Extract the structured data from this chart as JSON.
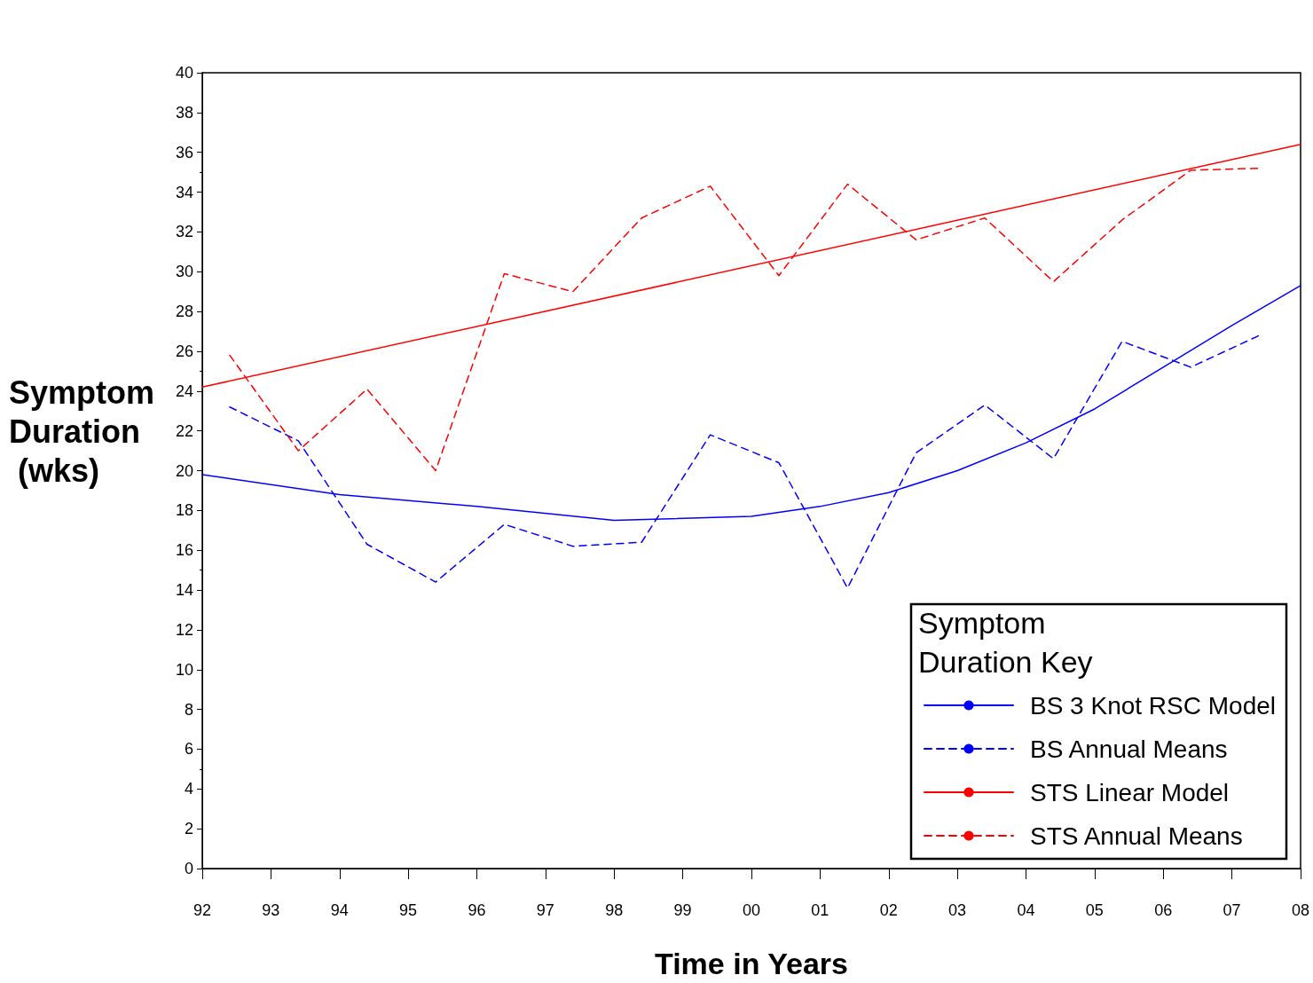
{
  "chart_data": {
    "type": "line",
    "xlabel": "Time in Years",
    "ylabel": "Symptom Duration (wks)",
    "legend_title": "Symptom Duration Key",
    "legend": "bottom right",
    "grid": false,
    "marker": "none",
    "xlim": [
      1992,
      2008
    ],
    "xticks": [
      {
        "value": 1992,
        "label": "92"
      },
      {
        "value": 1993,
        "label": "93"
      },
      {
        "value": 1994,
        "label": "94"
      },
      {
        "value": 1995,
        "label": "95"
      },
      {
        "value": 1996,
        "label": "96"
      },
      {
        "value": 1997,
        "label": "97"
      },
      {
        "value": 1998,
        "label": "98"
      },
      {
        "value": 1999,
        "label": "99"
      },
      {
        "value": 2000,
        "label": "00"
      },
      {
        "value": 2001,
        "label": "01"
      },
      {
        "value": 2002,
        "label": "02"
      },
      {
        "value": 2003,
        "label": "03"
      },
      {
        "value": 2004,
        "label": "04"
      },
      {
        "value": 2005,
        "label": "05"
      },
      {
        "value": 2006,
        "label": "06"
      },
      {
        "value": 2007,
        "label": "07"
      },
      {
        "value": 2008,
        "label": "08"
      }
    ],
    "ylim": [
      0,
      40
    ],
    "yticks": [
      0,
      2,
      4,
      6,
      8,
      10,
      12,
      14,
      16,
      18,
      20,
      22,
      24,
      26,
      28,
      30,
      32,
      34,
      36,
      38,
      40
    ],
    "series": [
      {
        "name": "BS 3 Knot RSC Model",
        "color": "#0000ff",
        "line_style": "solid",
        "x": [
          1992,
          1994,
          1996,
          1998,
          2000,
          2001,
          2002,
          2003,
          2004,
          2005,
          2006,
          2007,
          2008
        ],
        "values": [
          19.8,
          18.8,
          18.2,
          17.5,
          17.7,
          18.2,
          18.9,
          20.0,
          21.4,
          23.1,
          25.2,
          27.3,
          29.3
        ]
      },
      {
        "name": "BS Annual Means",
        "color": "#0000ff",
        "line_style": "dashed",
        "x": [
          1992.4,
          1993.4,
          1994.4,
          1995.4,
          1996.4,
          1997.4,
          1998.4,
          1999.4,
          2000.4,
          2001.4,
          2002.4,
          2003.4,
          2004.4,
          2005.4,
          2006.4,
          2007.4
        ],
        "values": [
          23.2,
          21.5,
          16.3,
          14.4,
          17.3,
          16.2,
          16.4,
          21.8,
          20.4,
          14.1,
          20.9,
          23.3,
          20.6,
          26.5,
          25.2,
          26.8
        ]
      },
      {
        "name": "STS Linear Model",
        "color": "#ff0000",
        "line_style": "solid",
        "x": [
          1992,
          2008
        ],
        "values": [
          24.2,
          36.4
        ]
      },
      {
        "name": "STS Annual Means",
        "color": "#ff0000",
        "line_style": "dashed",
        "x": [
          1992.4,
          1993.4,
          1994.4,
          1995.4,
          1996.4,
          1997.4,
          1998.4,
          1999.4,
          2000.4,
          2001.4,
          2002.4,
          2003.4,
          2004.4,
          2005.4,
          2006.4,
          2007.4
        ],
        "values": [
          25.8,
          21.0,
          24.1,
          20.0,
          29.9,
          29.0,
          32.7,
          34.3,
          29.8,
          34.4,
          31.6,
          32.7,
          29.5,
          32.6,
          35.1,
          35.2
        ]
      }
    ]
  }
}
